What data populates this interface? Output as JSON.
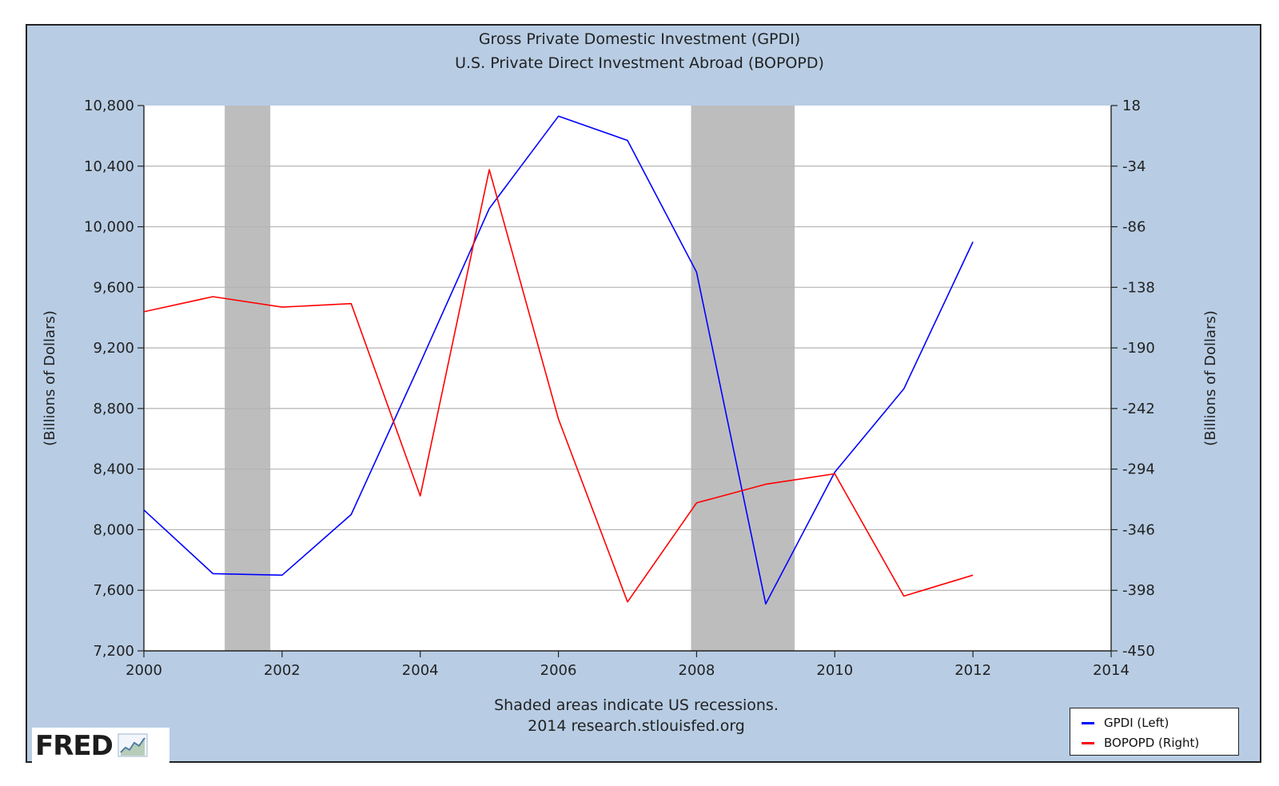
{
  "chart_data": {
    "type": "line",
    "title": "Gross Private Domestic Investment (GPDI)",
    "subtitle": "U.S. Private Direct Investment Abroad (BOPOPD)",
    "x": [
      2000,
      2001,
      2002,
      2003,
      2004,
      2005,
      2006,
      2007,
      2008,
      2009,
      2010,
      2011,
      2012
    ],
    "xlim": [
      2000,
      2014
    ],
    "xticks": [
      "2000",
      "2002",
      "2004",
      "2006",
      "2008",
      "2010",
      "2012",
      "2014"
    ],
    "ylabel_left": "(Billions of Dollars)",
    "ylabel_right": "(Billions of Dollars)",
    "ylim_left": [
      7200,
      10800
    ],
    "ylim_right": [
      -450,
      18
    ],
    "yticks_left": [
      "10,800",
      "10,400",
      "10,000",
      "9,600",
      "9,200",
      "8,800",
      "8,400",
      "8,000",
      "7,600",
      "7,200"
    ],
    "yticks_right": [
      "18",
      "-34",
      "-86",
      "-138",
      "-190",
      "-242",
      "-294",
      "-346",
      "-398",
      "-450"
    ],
    "grid": true,
    "recessions": [
      [
        2001.17,
        2001.83
      ],
      [
        2007.92,
        2009.42
      ]
    ],
    "series": [
      {
        "name": "GPDI (Left)",
        "axis": "left",
        "color": "#0000ff",
        "values": [
          8130,
          7710,
          7700,
          8100,
          9100,
          10120,
          10730,
          10570,
          9700,
          7510,
          8380,
          8930,
          9900
        ]
      },
      {
        "name": "BOPOPD (Right)",
        "axis": "right",
        "color": "#ff0000",
        "values": [
          -159,
          -146,
          -155,
          -152,
          -317,
          -37,
          -251,
          -408,
          -323,
          -307,
          -298,
          -403,
          -385
        ]
      }
    ]
  },
  "footnote": {
    "line1": "Shaded areas indicate US recessions.",
    "line2": "2014 research.stlouisfed.org"
  },
  "logo": {
    "text": "FRED"
  },
  "colors": {
    "background": "#b8cde4",
    "plot_bg": "#ffffff",
    "recession": "#bdbdbd",
    "grid": "#b4b4b4"
  }
}
